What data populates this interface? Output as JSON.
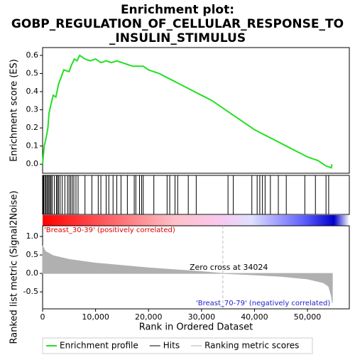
{
  "chart_data": [
    {
      "type": "line",
      "title_lines": [
        "Enrichment plot:",
        "GOBP_REGULATION_OF_CELLULAR_RESPONSE_TO",
        "_INSULIN_STIMULUS"
      ],
      "ylabel": "Enrichment score (ES)",
      "xlim": [
        0,
        57900
      ],
      "ylim": [
        -0.05,
        0.643
      ],
      "yticks": [
        {
          "value": 0,
          "label": "0.0"
        },
        0.1,
        0.2,
        0.3,
        0.4,
        0.5,
        0.6
      ],
      "series": [
        {
          "name": "Enrichment profile",
          "color": "#22e022",
          "x": [
            0,
            300,
            700,
            1000,
            1200,
            1500,
            2000,
            2500,
            3000,
            3500,
            4000,
            5000,
            5500,
            6000,
            6500,
            7000,
            8000,
            9000,
            10000,
            11000,
            12000,
            13000,
            14000,
            15000,
            16000,
            17000,
            18000,
            19000,
            20000,
            22000,
            24000,
            26000,
            28000,
            30000,
            32000,
            34000,
            36000,
            38000,
            40000,
            42000,
            44000,
            46000,
            48000,
            50000,
            52000,
            53500,
            54500,
            54600
          ],
          "values": [
            0,
            0.1,
            0.15,
            0.2,
            0.28,
            0.32,
            0.38,
            0.37,
            0.44,
            0.48,
            0.52,
            0.51,
            0.55,
            0.58,
            0.57,
            0.6,
            0.58,
            0.57,
            0.58,
            0.56,
            0.57,
            0.56,
            0.57,
            0.56,
            0.55,
            0.54,
            0.54,
            0.54,
            0.52,
            0.5,
            0.47,
            0.44,
            0.41,
            0.38,
            0.35,
            0.31,
            0.27,
            0.23,
            0.19,
            0.16,
            0.13,
            0.1,
            0.07,
            0.04,
            0.02,
            -0.01,
            -0.02,
            0
          ]
        }
      ]
    },
    {
      "type": "hits",
      "xlim": [
        0,
        57900
      ],
      "series": [
        {
          "name": "Hits",
          "color": "#000000",
          "x": [
            100,
            200,
            400,
            600,
            800,
            1000,
            1200,
            1400,
            1600,
            1800,
            2200,
            2600,
            2800,
            3000,
            3300,
            3700,
            4200,
            4700,
            5000,
            5300,
            5600,
            5900,
            6300,
            6700,
            8000,
            9300,
            10500,
            11000,
            12000,
            12500,
            13300,
            14000,
            14800,
            16000,
            17300,
            17600,
            18300,
            18700,
            19000,
            21000,
            23500,
            24000,
            25000,
            25500,
            27500,
            29000,
            35000,
            36000,
            39500,
            40500,
            41000,
            41500,
            42000,
            43000,
            44500,
            46000,
            49500,
            51500,
            53500,
            54000
          ]
        }
      ]
    },
    {
      "type": "area",
      "ylabel": "Ranked list metric (Signal2Noise)",
      "xlabel": "Rank in Ordered Dataset",
      "xlim": [
        0,
        57900
      ],
      "ylim": [
        -0.96,
        1.29
      ],
      "xticks": [
        0,
        {
          "value": 10000,
          "label": "10,000"
        },
        {
          "value": 20000,
          "label": "20,000"
        },
        {
          "value": 30000,
          "label": "30,000"
        },
        {
          "value": 40000,
          "label": "40,000"
        },
        {
          "value": 50000,
          "label": "50,000"
        }
      ],
      "yticks": [
        {
          "value": -0.5,
          "label": "-0.5"
        },
        {
          "value": 0,
          "label": "0.0"
        },
        {
          "value": 0.5,
          "label": "0.5"
        },
        {
          "value": 1,
          "label": "1.0"
        }
      ],
      "positive_label": "'Breast_30-39' (positively correlated)",
      "negative_label": "'Breast_70-79' (negatively correlated)",
      "zero_cross_label": "Zero cross at 34024",
      "zero_cross": 34024,
      "series": [
        {
          "name": "Ranking metric scores",
          "color": "#b0b0b0",
          "x": [
            0,
            500,
            2000,
            5000,
            10000,
            20000,
            30000,
            34024,
            40000,
            45000,
            50000,
            53000,
            54000,
            54500,
            54700
          ],
          "values": [
            0.75,
            0.6,
            0.48,
            0.38,
            0.28,
            0.15,
            0.05,
            0,
            -0.04,
            -0.08,
            -0.15,
            -0.25,
            -0.35,
            -0.6,
            -0.8
          ]
        }
      ]
    }
  ]
}
